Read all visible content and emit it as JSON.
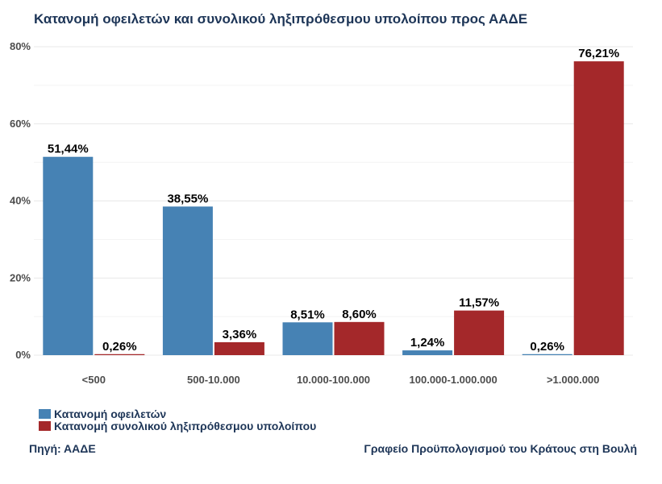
{
  "chart_data": {
    "type": "bar",
    "title": "Κατανομή οφειλετών και συνολικού ληξιπρόθεσμου υπολοίπου προς ΑΑΔΕ",
    "categories": [
      "<500",
      "500-10.000",
      "10.000-100.000",
      "100.000-1.000.000",
      ">1.000.000"
    ],
    "series": [
      {
        "name": "Κατανομή οφειλετών",
        "values": [
          51.44,
          38.55,
          8.51,
          1.24,
          0.26
        ],
        "labels": [
          "51,44%",
          "38,55%",
          "8,51%",
          "1,24%",
          "0,26%"
        ],
        "color": "#4682b4"
      },
      {
        "name": "Κατανομή συνολικού ληξιπρόθεσμου υπολοίπου",
        "values": [
          0.26,
          3.36,
          8.6,
          11.57,
          76.21
        ],
        "labels": [
          "0,26%",
          "3,36%",
          "8,60%",
          "11,57%",
          "76,21%"
        ],
        "color": "#a4282a"
      }
    ],
    "ylim": [
      0,
      80
    ],
    "yticks": [
      0,
      20,
      40,
      60,
      80
    ],
    "ytick_labels": [
      "0%",
      "20%",
      "40%",
      "60%",
      "80%"
    ],
    "xlabel": "",
    "ylabel": "",
    "grid": true,
    "legend_position": "bottom-left"
  },
  "footer": {
    "source": "Πηγή: ΑΑΔΕ",
    "credit": "Γραφείο Προϋπολογισμού του Κράτους στη Βουλή"
  }
}
